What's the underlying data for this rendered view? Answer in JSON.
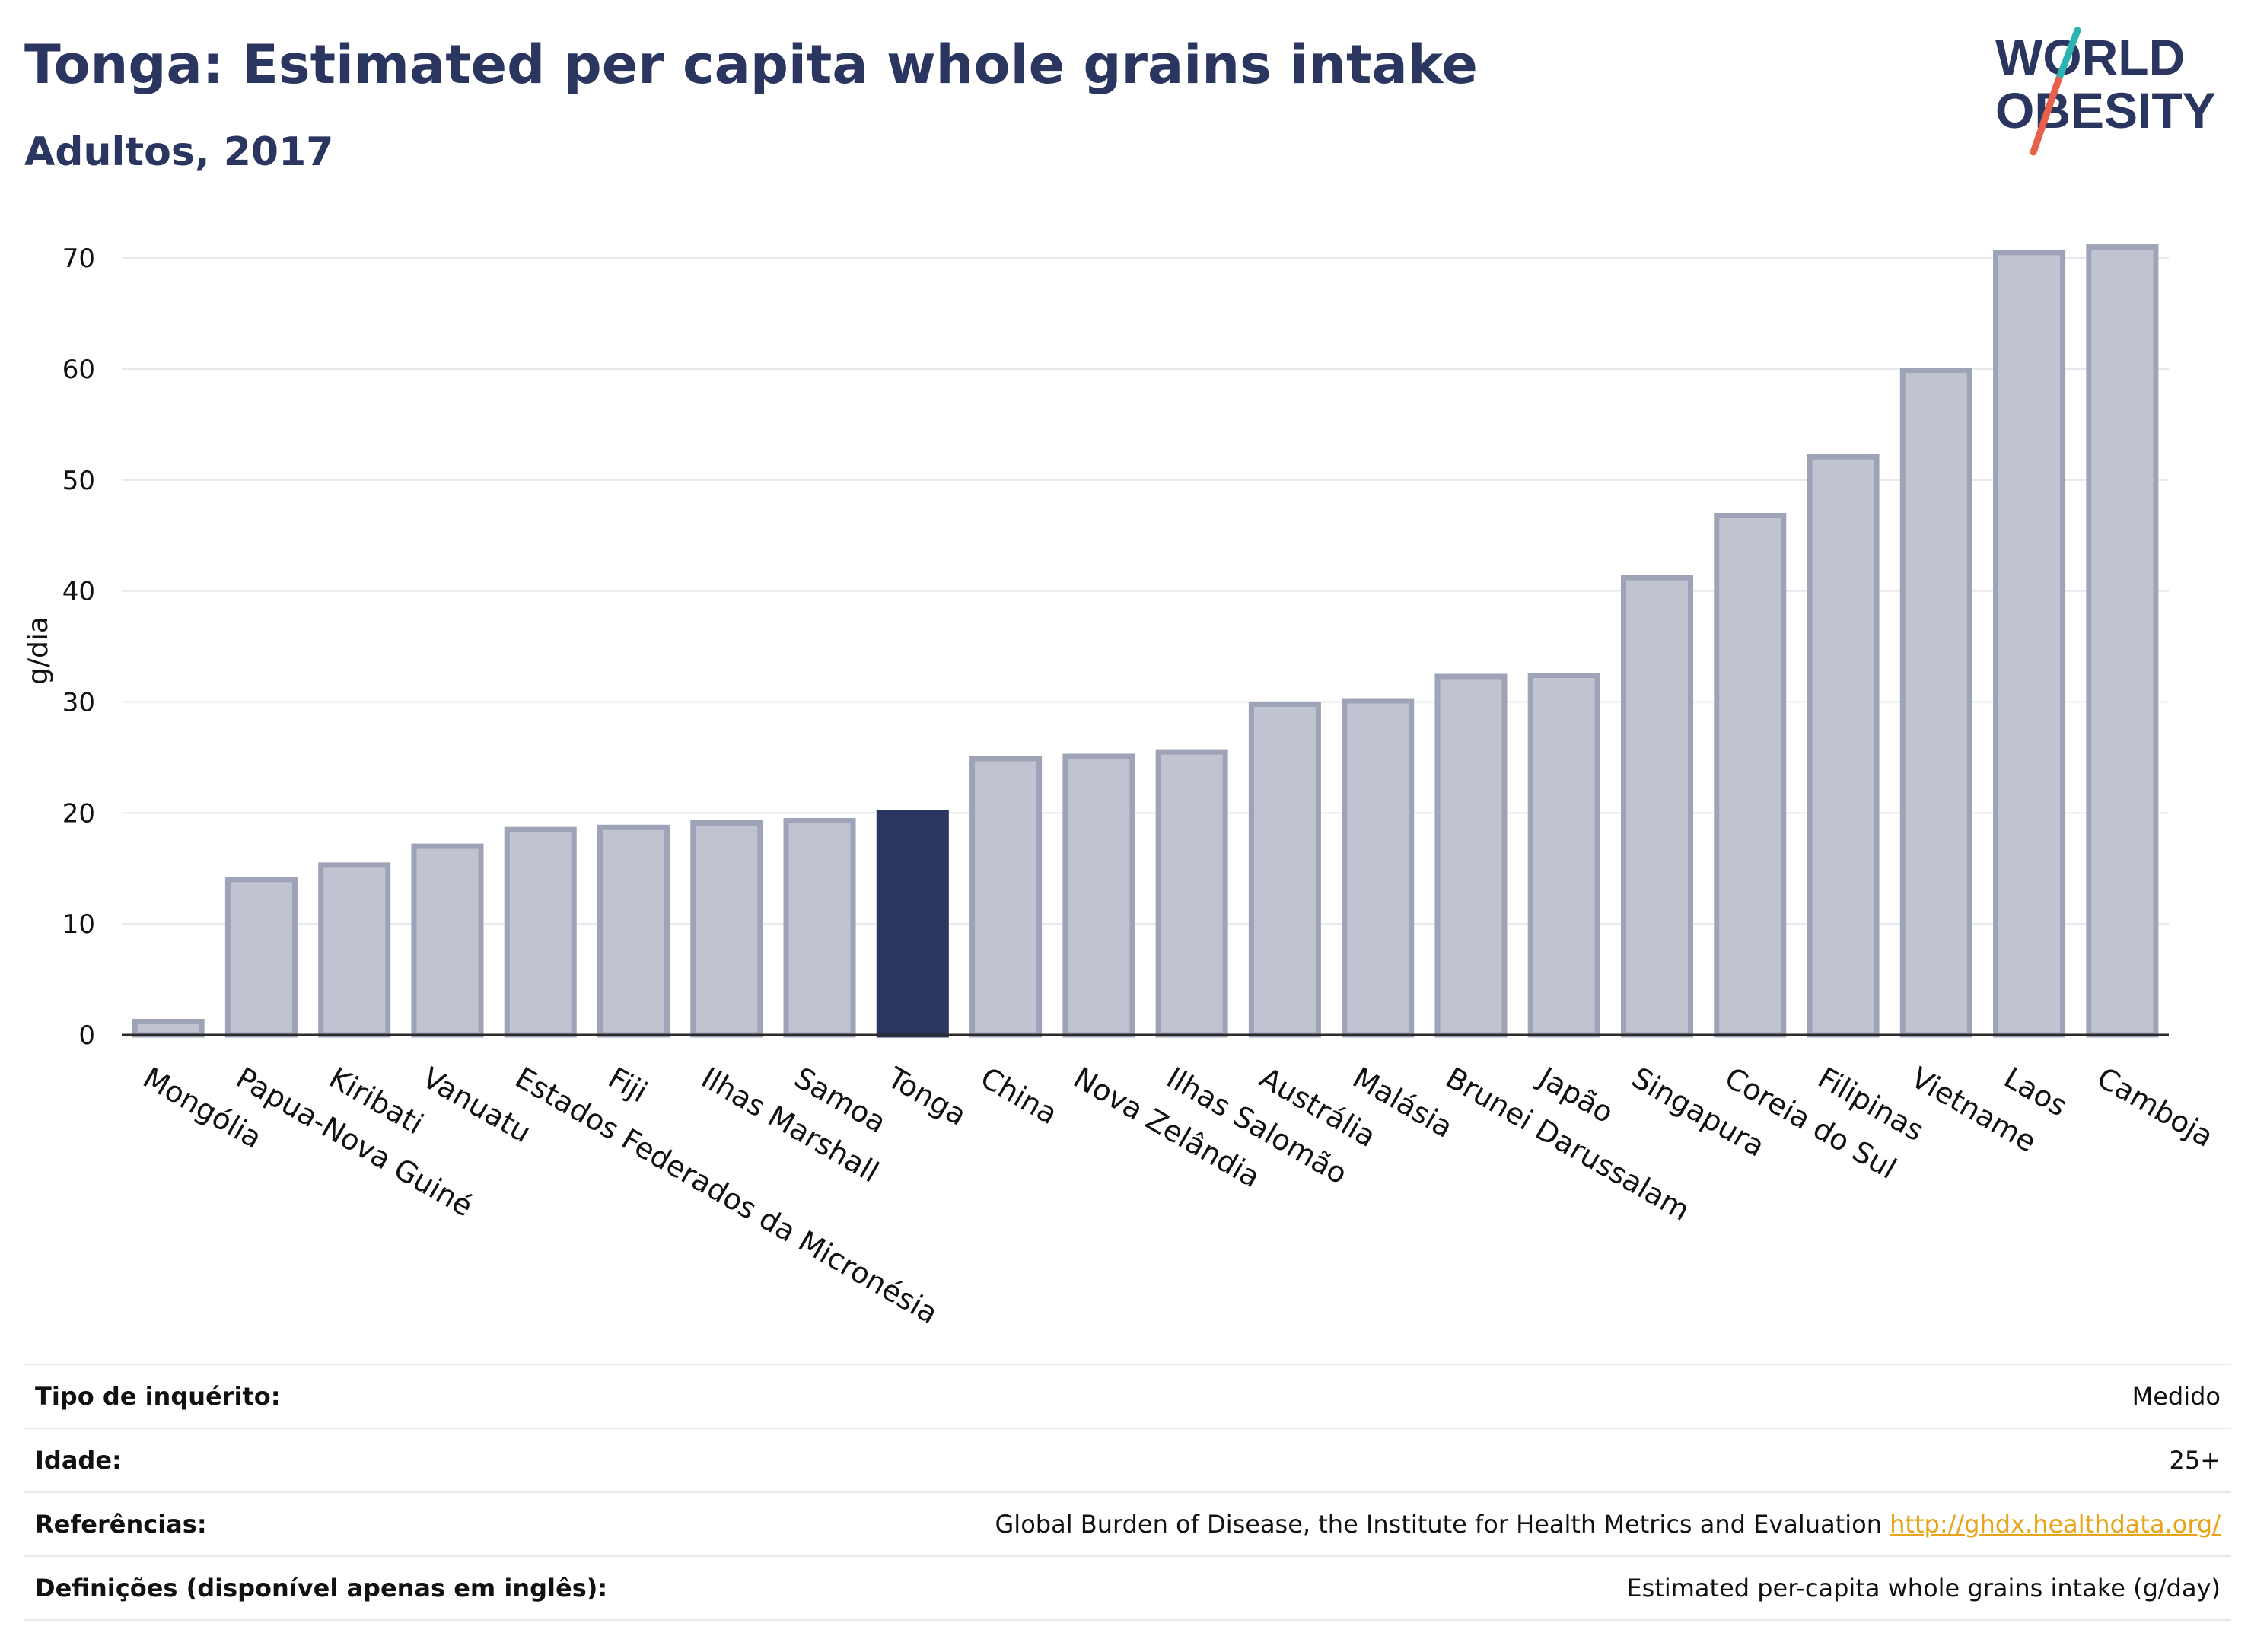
{
  "header": {
    "title": "Tonga: Estimated per capita whole grains intake",
    "subtitle": "Adultos, 2017"
  },
  "logo": {
    "line1": "WORLD",
    "line2": "OBESITY",
    "color_text": "#2a3560",
    "color_slash_top": "#2bb3b1",
    "color_slash_bottom": "#e8604c"
  },
  "chart_data": {
    "type": "bar",
    "ylabel": "g/dia",
    "ylim": [
      0,
      72
    ],
    "yticks": [
      0,
      10,
      20,
      30,
      40,
      50,
      60,
      70
    ],
    "grid": true,
    "highlight": "Tonga",
    "colors": {
      "default_fill": "#c0c3d0",
      "default_stroke": "#9ea3b8",
      "highlight_fill": "#2a3560"
    },
    "categories": [
      "Mongólia",
      "Papua-Nova Guiné",
      "Kiribati",
      "Vanuatu",
      "Estados Federados da Micronésia",
      "Fiji",
      "Ilhas Marshall",
      "Samoa",
      "Tonga",
      "China",
      "Nova Zelândia",
      "Ilhas Salomão",
      "Austrália",
      "Malásia",
      "Brunei Darussalam",
      "Japão",
      "Singapura",
      "Coreia do Sul",
      "Filipinas",
      "Vietname",
      "Laos",
      "Camboja"
    ],
    "values": [
      1.2,
      14.0,
      15.3,
      17.0,
      18.5,
      18.7,
      19.1,
      19.3,
      20.0,
      24.9,
      25.1,
      25.5,
      29.8,
      30.1,
      32.3,
      32.4,
      41.2,
      46.8,
      52.1,
      59.9,
      70.5,
      71.0
    ]
  },
  "info": [
    {
      "label": "Tipo de inquérito:",
      "value": "Medido"
    },
    {
      "label": "Idade:",
      "value": "25+"
    },
    {
      "label": "Referências:",
      "value": "Global Burden of Disease, the Institute for Health Metrics and Evaluation",
      "link": "http://ghdx.healthdata.org/"
    },
    {
      "label": "Definições (disponível apenas em inglês):",
      "value": "Estimated per-capita whole grains intake (g/day)"
    }
  ]
}
